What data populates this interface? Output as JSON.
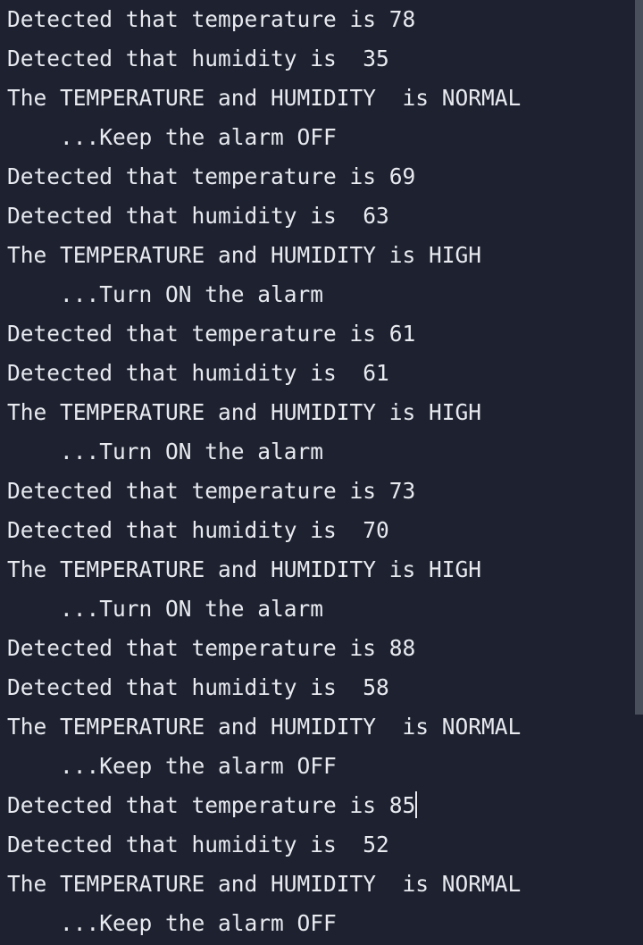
{
  "cursor_after_line": 20,
  "lines": [
    "Detected that temperature is 78",
    "Detected that humidity is  35",
    "The TEMPERATURE and HUMIDITY  is NORMAL",
    "    ...Keep the alarm OFF",
    "Detected that temperature is 69",
    "Detected that humidity is  63",
    "The TEMPERATURE and HUMIDITY is HIGH",
    "    ...Turn ON the alarm",
    "Detected that temperature is 61",
    "Detected that humidity is  61",
    "The TEMPERATURE and HUMIDITY is HIGH",
    "    ...Turn ON the alarm",
    "Detected that temperature is 73",
    "Detected that humidity is  70",
    "The TEMPERATURE and HUMIDITY is HIGH",
    "    ...Turn ON the alarm",
    "Detected that temperature is 88",
    "Detected that humidity is  58",
    "The TEMPERATURE and HUMIDITY  is NORMAL",
    "    ...Keep the alarm OFF",
    "Detected that temperature is 85",
    "Detected that humidity is  52",
    "The TEMPERATURE and HUMIDITY  is NORMAL",
    "    ...Keep the alarm OFF"
  ]
}
